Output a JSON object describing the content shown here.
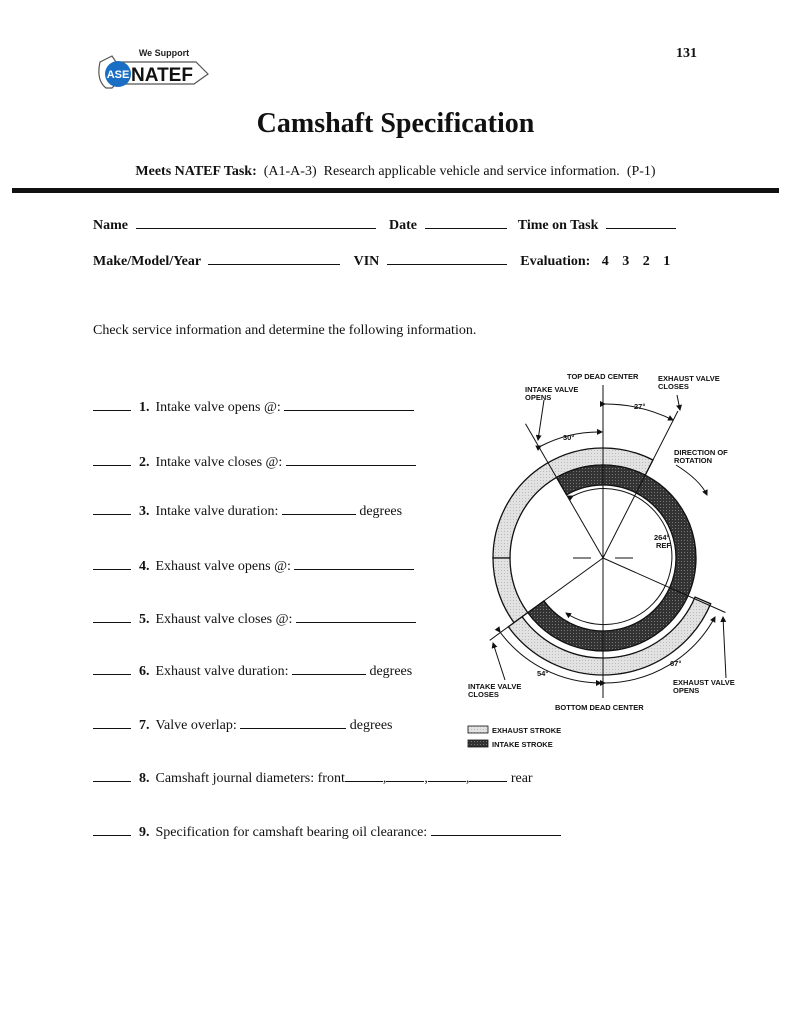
{
  "page_number": "131",
  "logo": {
    "tagline": "We Support",
    "brand": "NATEF",
    "badge": "ASE"
  },
  "title": "Camshaft Specification",
  "task": {
    "label": "Meets NATEF Task:",
    "code": "(A1-A-3)",
    "description": "Research applicable vehicle and service information.",
    "priority": "(P-1)"
  },
  "header_fields": {
    "name": "Name",
    "date": "Date",
    "time_on_task": "Time on Task",
    "make_model_year": "Make/Model/Year",
    "vin": "VIN",
    "evaluation": "Evaluation:",
    "evaluation_scores": [
      "4",
      "3",
      "2",
      "1"
    ]
  },
  "instructions": "Check service information and determine the following information.",
  "items": [
    {
      "num": "1.",
      "text": "Intake valve opens @:"
    },
    {
      "num": "2.",
      "text": "Intake valve closes @:"
    },
    {
      "num": "3.",
      "text": "Intake valve duration:",
      "suffix": "degrees"
    },
    {
      "num": "4.",
      "text": "Exhaust valve opens @:"
    },
    {
      "num": "5.",
      "text": "Exhaust valve closes @:"
    },
    {
      "num": "6.",
      "text": "Exhaust valve duration:",
      "suffix": "degrees"
    },
    {
      "num": "7.",
      "text": "Valve overlap:",
      "suffix": "degrees"
    },
    {
      "num": "8.",
      "text": "Camshaft journal diameters: front",
      "separator": ",",
      "suffix": "rear"
    },
    {
      "num": "9.",
      "text": "Specification for camshaft bearing oil clearance:"
    }
  ],
  "diagram": {
    "top_dead_center": "TOP DEAD CENTER",
    "bottom_dead_center": "BOTTOM DEAD CENTER",
    "intake_valve_opens": [
      "INTAKE VALVE",
      "OPENS"
    ],
    "intake_valve_closes": [
      "INTAKE VALVE",
      "CLOSES"
    ],
    "exhaust_valve_opens": [
      "EXHAUST VALVE",
      "OPENS"
    ],
    "exhaust_valve_closes": [
      "EXHAUST VALVE",
      "CLOSES"
    ],
    "direction": [
      "DIRECTION OF",
      "ROTATION"
    ],
    "angle_ivo": "30°",
    "angle_evc": "27°",
    "angle_ivc": "54°",
    "angle_evo": "67°",
    "duration_ref": [
      "264°",
      "REF."
    ],
    "legend": [
      {
        "label": "EXHAUST STROKE",
        "color": "#dcdcdc"
      },
      {
        "label": "INTAKE STROKE",
        "color": "#3a3a3a"
      }
    ]
  }
}
